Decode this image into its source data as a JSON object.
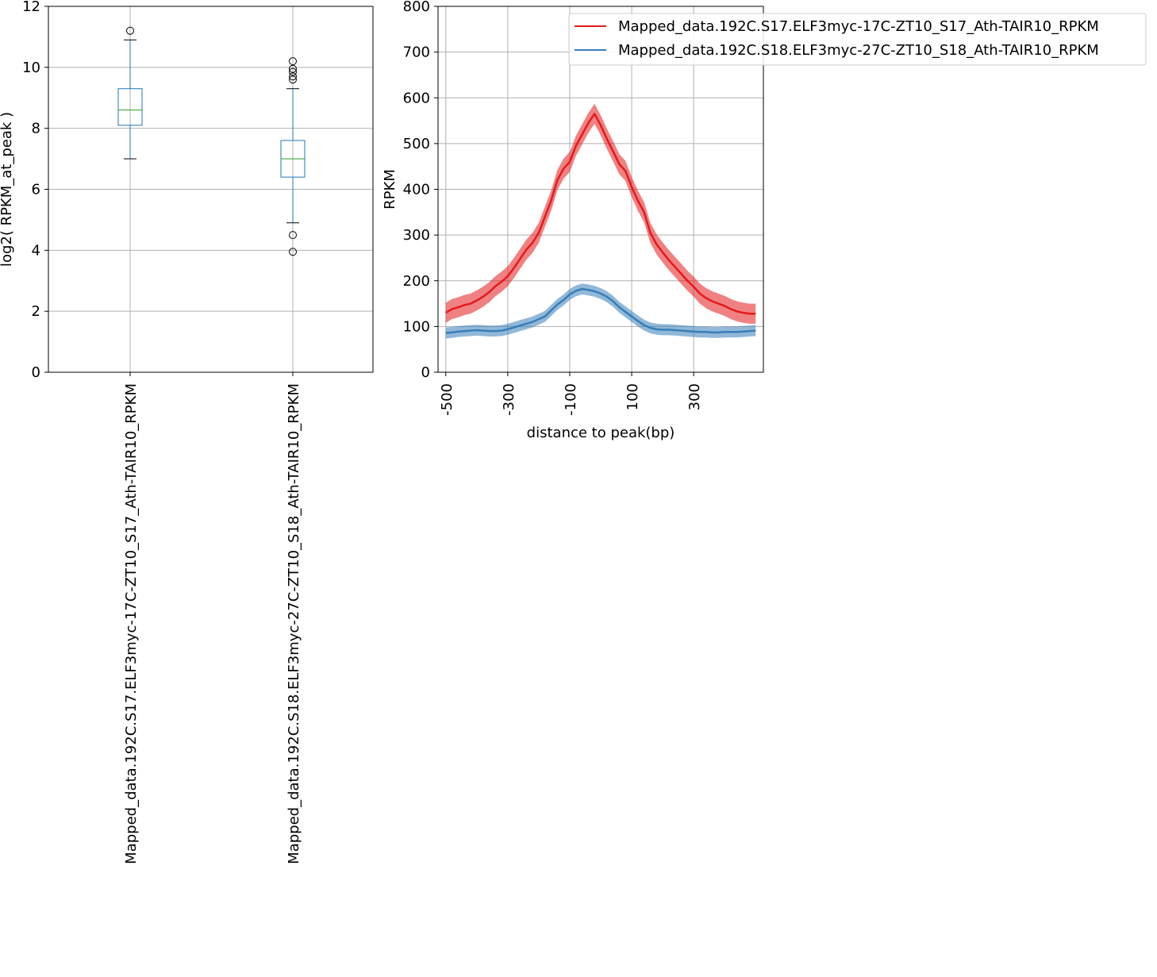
{
  "colors": {
    "box": "#1f77b4",
    "median": "#2ca02c",
    "whisker": "#1f77b4",
    "cap": "#000000",
    "flier": "#000000",
    "grid": "#b0b0b0",
    "series_red": "#e41a1c",
    "series_blue": "#377eb8"
  },
  "chart_data": [
    {
      "type": "box",
      "ylabel": "log2( RPKM_at_peak )",
      "ylim": [
        0,
        12
      ],
      "yticks": [
        0,
        2,
        4,
        6,
        8,
        10,
        12
      ],
      "grid": true,
      "categories": [
        "Mapped_data.192C.S17.ELF3myc-17C-ZT10_S17_Ath-TAIR10_RPKM",
        "Mapped_data.192C.S18.ELF3myc-27C-ZT10_S18_Ath-TAIR10_RPKM"
      ],
      "boxes": [
        {
          "whislo": 7.0,
          "q1": 8.1,
          "med": 8.6,
          "q3": 9.3,
          "whishi": 10.9,
          "fliers": [
            11.2
          ]
        },
        {
          "whislo": 4.9,
          "q1": 6.4,
          "med": 7.0,
          "q3": 7.6,
          "whishi": 9.3,
          "fliers": [
            3.95,
            4.5,
            9.6,
            9.7,
            9.85,
            9.95,
            10.2
          ]
        }
      ]
    },
    {
      "type": "line",
      "xlabel": "distance to peak(bp)",
      "ylabel": "RPKM",
      "xlim": [
        -525,
        525
      ],
      "ylim": [
        0,
        800
      ],
      "xticks": [
        -500,
        -300,
        -100,
        100,
        300
      ],
      "xtick_labels": [
        "-500",
        "-300",
        "-100",
        "100",
        "300"
      ],
      "yticks": [
        0,
        100,
        200,
        300,
        400,
        500,
        600,
        700,
        800
      ],
      "grid": true,
      "legend": "top-right",
      "x": [
        -500,
        -480,
        -460,
        -440,
        -420,
        -400,
        -380,
        -360,
        -340,
        -320,
        -300,
        -280,
        -260,
        -240,
        -220,
        -200,
        -180,
        -160,
        -140,
        -120,
        -100,
        -80,
        -60,
        -40,
        -20,
        0,
        20,
        40,
        60,
        80,
        100,
        120,
        140,
        160,
        180,
        200,
        220,
        240,
        260,
        280,
        300,
        320,
        340,
        360,
        380,
        400,
        420,
        440,
        460,
        480,
        500
      ],
      "series": [
        {
          "name": "Mapped_data.192C.S17.ELF3myc-17C-ZT10_S17_Ath-TAIR10_RPKM",
          "color": "#e41a1c",
          "values": [
            130,
            138,
            142,
            147,
            150,
            157,
            165,
            175,
            188,
            198,
            210,
            228,
            248,
            268,
            283,
            305,
            340,
            375,
            420,
            445,
            460,
            495,
            520,
            545,
            565,
            540,
            510,
            483,
            455,
            440,
            405,
            375,
            350,
            305,
            280,
            262,
            245,
            230,
            215,
            200,
            187,
            172,
            162,
            155,
            150,
            145,
            138,
            133,
            130,
            128,
            128
          ],
          "band": 22
        },
        {
          "name": "Mapped_data.192C.S18.ELF3myc-27C-ZT10_S18_Ath-TAIR10_RPKM",
          "color": "#377eb8",
          "values": [
            86,
            87,
            89,
            90,
            91,
            92,
            91,
            90,
            90,
            91,
            94,
            98,
            102,
            106,
            110,
            116,
            122,
            135,
            148,
            158,
            170,
            178,
            182,
            180,
            177,
            172,
            165,
            155,
            142,
            132,
            122,
            112,
            103,
            97,
            94,
            93,
            93,
            92,
            91,
            90,
            89,
            88,
            88,
            87,
            87,
            88,
            88,
            88,
            89,
            90,
            91
          ],
          "band": 12
        }
      ]
    }
  ]
}
